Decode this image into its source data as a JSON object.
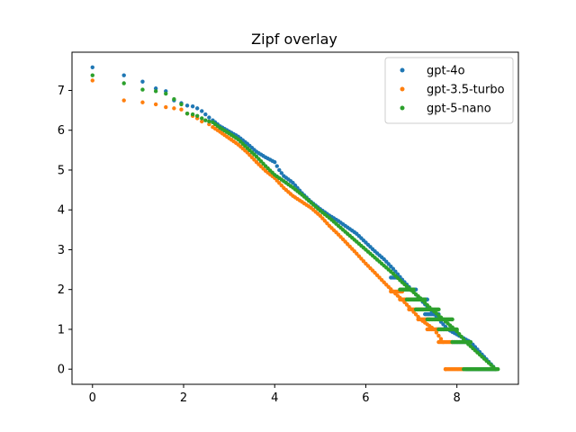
{
  "chart_data": {
    "type": "scatter",
    "title": "Zipf overlay",
    "xlabel": "",
    "ylabel": "",
    "xlim": [
      -0.45,
      9.35
    ],
    "ylim": [
      -0.38,
      7.96
    ],
    "xticks": [
      0,
      2,
      4,
      6,
      8
    ],
    "yticks": [
      0,
      1,
      2,
      3,
      4,
      5,
      6,
      7
    ],
    "grid": false,
    "legend": "top-right",
    "series": [
      {
        "name": "gpt-4o",
        "color": "#1f77b4",
        "points": [
          [
            0.0,
            7.58
          ],
          [
            0.69,
            7.38
          ],
          [
            1.1,
            7.22
          ],
          [
            1.39,
            7.05
          ],
          [
            1.61,
            6.98
          ],
          [
            1.79,
            6.75
          ],
          [
            1.95,
            6.68
          ],
          [
            2.08,
            6.62
          ],
          [
            2.2,
            6.6
          ],
          [
            2.3,
            6.55
          ],
          [
            2.4,
            6.48
          ],
          [
            2.48,
            6.4
          ],
          [
            2.56,
            6.32
          ],
          [
            2.64,
            6.25
          ],
          [
            2.8,
            6.1
          ],
          [
            3.0,
            5.97
          ],
          [
            3.2,
            5.84
          ],
          [
            3.4,
            5.66
          ],
          [
            3.6,
            5.46
          ],
          [
            3.8,
            5.32
          ],
          [
            4.0,
            5.2
          ],
          [
            4.1,
            5.0
          ],
          [
            4.2,
            4.85
          ],
          [
            4.4,
            4.68
          ],
          [
            4.6,
            4.42
          ],
          [
            4.8,
            4.2
          ],
          [
            5.0,
            4.02
          ],
          [
            5.2,
            3.86
          ],
          [
            5.4,
            3.72
          ],
          [
            5.6,
            3.56
          ],
          [
            5.8,
            3.4
          ],
          [
            6.0,
            3.18
          ],
          [
            6.2,
            2.96
          ],
          [
            6.4,
            2.76
          ],
          [
            6.6,
            2.52
          ],
          [
            6.8,
            2.25
          ],
          [
            7.0,
            2.0
          ],
          [
            7.2,
            1.75
          ],
          [
            7.5,
            1.38
          ],
          [
            7.8,
            1.0
          ],
          [
            8.3,
            0.68
          ],
          [
            8.85,
            0.0
          ]
        ],
        "flat_runs": [
          [
            6.55,
            6.75,
            2.3
          ],
          [
            6.8,
            7.1,
            2.0
          ],
          [
            7.05,
            7.35,
            1.75
          ],
          [
            7.3,
            7.6,
            1.38
          ],
          [
            7.55,
            7.9,
            1.0
          ],
          [
            7.9,
            8.3,
            0.68
          ],
          [
            8.2,
            8.85,
            0.0
          ]
        ]
      },
      {
        "name": "gpt-3.5-turbo",
        "color": "#ff7f0e",
        "points": [
          [
            0.0,
            7.25
          ],
          [
            0.69,
            6.75
          ],
          [
            1.1,
            6.7
          ],
          [
            1.39,
            6.65
          ],
          [
            1.61,
            6.58
          ],
          [
            1.79,
            6.55
          ],
          [
            1.95,
            6.52
          ],
          [
            2.08,
            6.42
          ],
          [
            2.2,
            6.36
          ],
          [
            2.3,
            6.3
          ],
          [
            2.4,
            6.22
          ],
          [
            2.56,
            6.15
          ],
          [
            2.64,
            6.08
          ],
          [
            2.8,
            5.96
          ],
          [
            3.0,
            5.8
          ],
          [
            3.2,
            5.64
          ],
          [
            3.4,
            5.44
          ],
          [
            3.6,
            5.2
          ],
          [
            3.8,
            4.98
          ],
          [
            4.0,
            4.8
          ],
          [
            4.2,
            4.55
          ],
          [
            4.4,
            4.35
          ],
          [
            4.6,
            4.2
          ],
          [
            4.8,
            4.05
          ],
          [
            5.0,
            3.85
          ],
          [
            5.2,
            3.6
          ],
          [
            5.4,
            3.38
          ],
          [
            5.6,
            3.14
          ],
          [
            5.8,
            2.9
          ],
          [
            6.0,
            2.65
          ],
          [
            6.2,
            2.42
          ],
          [
            6.4,
            2.18
          ],
          [
            6.6,
            1.95
          ],
          [
            6.8,
            1.74
          ],
          [
            7.0,
            1.5
          ],
          [
            7.2,
            1.25
          ],
          [
            7.5,
            1.0
          ],
          [
            7.7,
            0.68
          ],
          [
            7.75,
            0.0
          ]
        ],
        "flat_runs": [
          [
            6.55,
            6.8,
            1.95
          ],
          [
            6.75,
            7.0,
            1.75
          ],
          [
            6.95,
            7.25,
            1.5
          ],
          [
            7.15,
            7.4,
            1.25
          ],
          [
            7.35,
            7.6,
            1.0
          ],
          [
            7.6,
            7.9,
            0.68
          ],
          [
            7.75,
            8.15,
            0.0
          ]
        ]
      },
      {
        "name": "gpt-5-nano",
        "color": "#2ca02c",
        "points": [
          [
            0.0,
            7.38
          ],
          [
            0.69,
            7.18
          ],
          [
            1.1,
            7.02
          ],
          [
            1.39,
            6.98
          ],
          [
            1.61,
            6.92
          ],
          [
            1.79,
            6.78
          ],
          [
            1.95,
            6.65
          ],
          [
            2.08,
            6.42
          ],
          [
            2.2,
            6.4
          ],
          [
            2.3,
            6.36
          ],
          [
            2.4,
            6.3
          ],
          [
            2.48,
            6.25
          ],
          [
            2.56,
            6.22
          ],
          [
            2.64,
            6.2
          ],
          [
            2.8,
            6.06
          ],
          [
            3.0,
            5.92
          ],
          [
            3.2,
            5.77
          ],
          [
            3.4,
            5.55
          ],
          [
            3.6,
            5.34
          ],
          [
            3.8,
            5.1
          ],
          [
            4.0,
            4.88
          ],
          [
            4.2,
            4.72
          ],
          [
            4.4,
            4.56
          ],
          [
            4.6,
            4.38
          ],
          [
            4.8,
            4.18
          ],
          [
            5.0,
            3.98
          ],
          [
            5.2,
            3.8
          ],
          [
            5.4,
            3.6
          ],
          [
            5.6,
            3.4
          ],
          [
            5.8,
            3.2
          ],
          [
            6.0,
            3.0
          ],
          [
            6.2,
            2.8
          ],
          [
            6.4,
            2.6
          ],
          [
            6.6,
            2.4
          ],
          [
            6.8,
            2.18
          ],
          [
            7.0,
            1.98
          ],
          [
            7.2,
            1.78
          ],
          [
            7.4,
            1.55
          ],
          [
            7.7,
            1.25
          ],
          [
            8.0,
            0.95
          ],
          [
            8.2,
            0.68
          ],
          [
            8.85,
            0.0
          ]
        ],
        "flat_runs": [
          [
            6.75,
            7.05,
            2.0
          ],
          [
            6.9,
            7.3,
            1.75
          ],
          [
            7.1,
            7.6,
            1.5
          ],
          [
            7.35,
            7.9,
            1.25
          ],
          [
            7.6,
            8.0,
            1.0
          ],
          [
            7.9,
            8.3,
            0.68
          ],
          [
            8.15,
            8.9,
            0.0
          ]
        ]
      }
    ]
  }
}
